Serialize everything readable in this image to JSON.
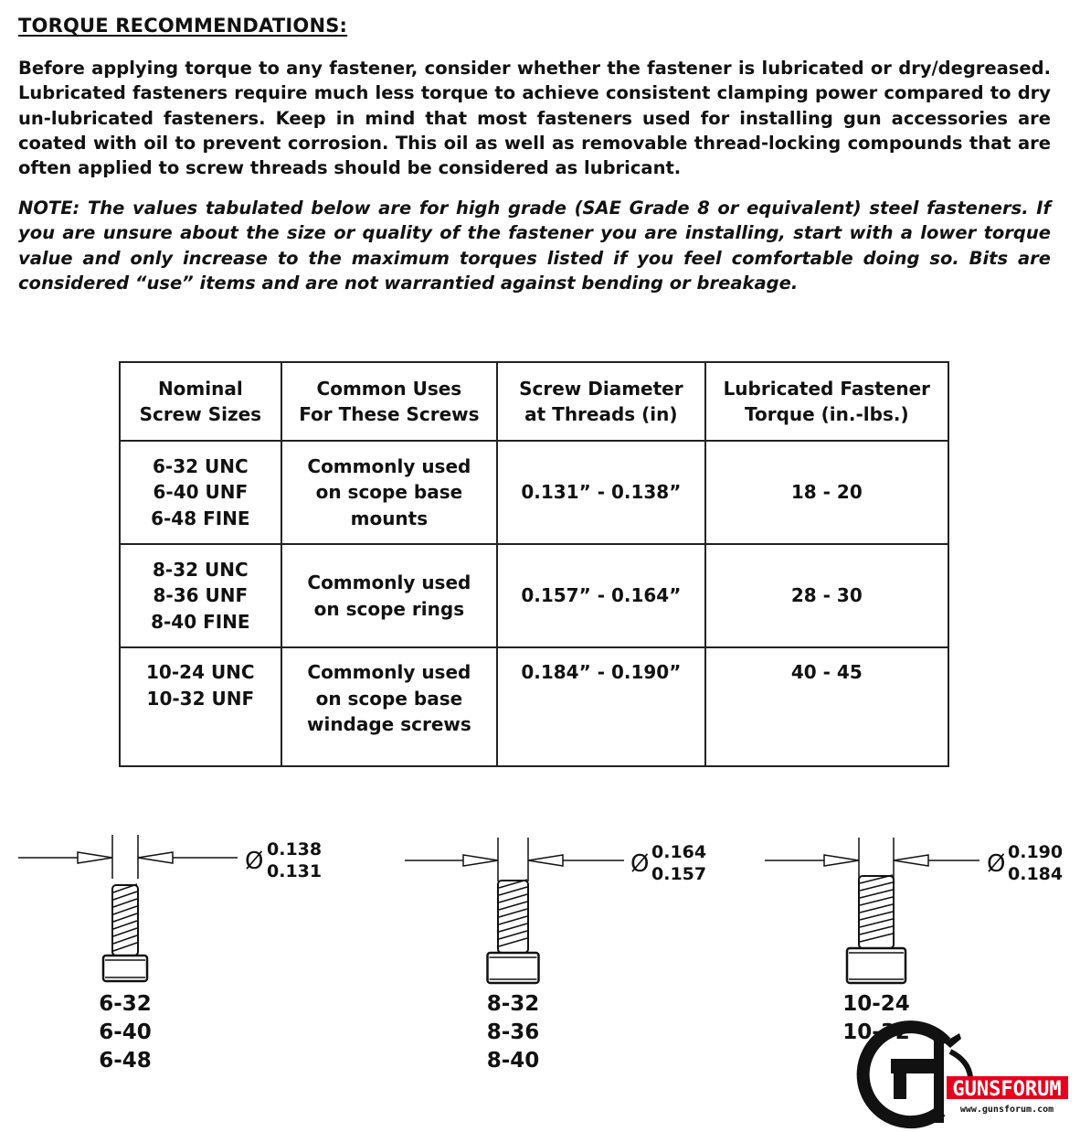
{
  "title": "TORQUE RECOMMENDATIONS:",
  "paragraph": "Before applying torque to any fastener, consider whether the fastener is lubricated or dry/degreased. Lubricated fasteners require much less torque to achieve consistent clamping power compared to dry un-lubricated fasteners. Keep in mind that most fasteners used for installing gun accessories are coated with oil to prevent corrosion. This oil as well as removable thread-locking compounds that are often applied to screw threads should be considered as lubricant.",
  "note": "NOTE: The values tabulated below are for high grade (SAE Grade 8 or equivalent) steel fasteners.  If you are unsure about the size or quality of the fastener you are installing, start with a lower torque value and only increase to the maximum torques listed if you feel comfortable doing so. Bits are considered “use” items and are not warrantied against bending or breakage.",
  "table": {
    "headers": [
      "Nominal\nScrew Sizes",
      "Common Uses\nFor These Screws",
      "Screw Diameter\nat Threads (in)",
      "Lubricated Fastener\nTorque (in.-lbs.)"
    ],
    "rows": [
      [
        "6-32 UNC\n6-40 UNF\n6-48 FINE",
        "Commonly used\non scope base\nmounts",
        "0.131” - 0.138”",
        "18 - 20"
      ],
      [
        "8-32 UNC\n8-36 UNF\n8-40 FINE",
        "Commonly used\non scope rings",
        "0.157” - 0.164”",
        "28 - 30"
      ],
      [
        "10-24 UNC\n10-32 UNF",
        "Commonly used\non scope base\nwindage screws",
        "0.184” - 0.190”",
        "40 - 45"
      ]
    ]
  },
  "diagrams": [
    {
      "max": "0.138",
      "min": "0.131",
      "sizes": [
        "6-32",
        "6-40",
        "6-48"
      ]
    },
    {
      "max": "0.164",
      "min": "0.157",
      "sizes": [
        "8-32",
        "8-36",
        "8-40"
      ]
    },
    {
      "max": "0.190",
      "min": "0.184",
      "sizes": [
        "10-24",
        "10-32"
      ]
    }
  ],
  "diameter_symbol": "Ø",
  "watermark": {
    "name": "GUNSFORUM",
    "url": "www.gunsforum.com",
    "color": "#e8001c"
  }
}
